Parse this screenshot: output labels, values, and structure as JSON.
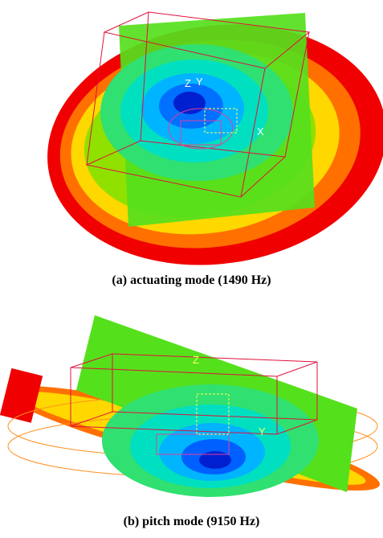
{
  "figures": [
    {
      "caption": "(a) actuating mode (1490 Hz)",
      "axis_labels": [
        "Z",
        "Y",
        "X"
      ]
    },
    {
      "caption": "(b) pitch mode (9150 Hz)",
      "axis_labels": [
        "Z",
        "Y"
      ]
    }
  ]
}
